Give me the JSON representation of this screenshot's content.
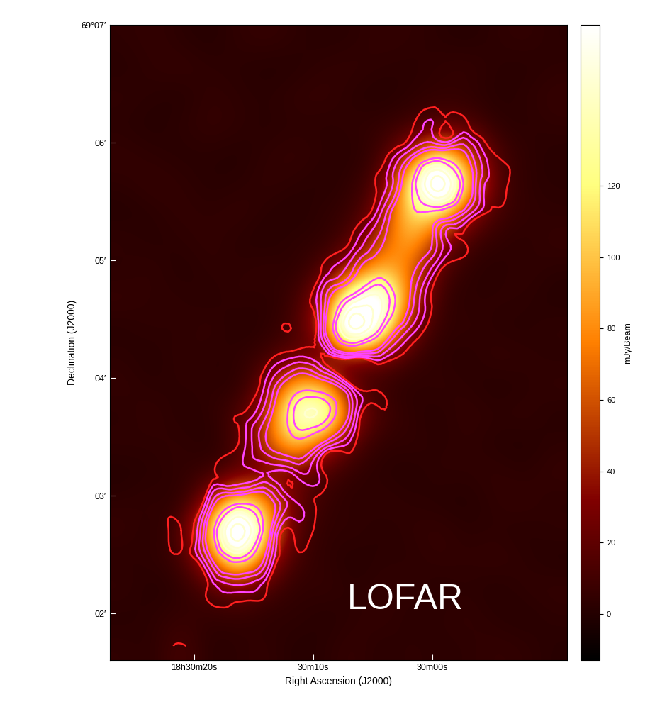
{
  "chart_data": {
    "type": "heatmap",
    "x_label": "Right Ascension (J2000)",
    "y_label": "Declination (J2000)",
    "colorbar_label": "mJy/Beam",
    "annotations": [
      "LOFAR"
    ],
    "xlim": [
      87.1,
      48.7
    ],
    "xticks": [
      {
        "value": 80,
        "label": "18h30m20s"
      },
      {
        "value": 70,
        "label": "30m10s"
      },
      {
        "value": 60,
        "label": "30m00s"
      }
    ],
    "ylim": [
      1.6,
      7.0
    ],
    "yticks": [
      {
        "value": 2,
        "label": "02′"
      },
      {
        "value": 3,
        "label": "03′"
      },
      {
        "value": 4,
        "label": "04′"
      },
      {
        "value": 5,
        "label": "05′"
      },
      {
        "value": 6,
        "label": "06′"
      },
      {
        "value": 7,
        "label": "69°07′"
      }
    ],
    "colorbar_range": [
      -13,
      165
    ],
    "colorbar_ticks": [
      0,
      20,
      40,
      60,
      80,
      100,
      120
    ],
    "contours": [
      {
        "color": "#ff2020",
        "levels": [
          12
        ]
      },
      {
        "color": "#ff44ff",
        "levels": [
          20,
          30,
          45,
          60,
          130,
          160
        ]
      },
      {
        "color": "#ffffd0",
        "levels": [
          200,
          240,
          280
        ]
      }
    ],
    "cells": [
      [
        3,
        5,
        2,
        0,
        4,
        6,
        3,
        1,
        2,
        5,
        4,
        2,
        0,
        3,
        5,
        2
      ],
      [
        1,
        4,
        6,
        3,
        2,
        0,
        1,
        4,
        5,
        3,
        2,
        4,
        6,
        2,
        1,
        3
      ],
      [
        4,
        2,
        0,
        5,
        3,
        2,
        5,
        6,
        2,
        0,
        3,
        5,
        4,
        1,
        3,
        6
      ],
      [
        2,
        0,
        3,
        6,
        4,
        1,
        3,
        2,
        4,
        5,
        8,
        15,
        14,
        3,
        2,
        4
      ],
      [
        5,
        3,
        1,
        2,
        0,
        4,
        6,
        3,
        1,
        8,
        40,
        100,
        60,
        12,
        4,
        1
      ],
      [
        3,
        6,
        4,
        1,
        2,
        5,
        3,
        1,
        4,
        15,
        110,
        300,
        100,
        15,
        3,
        2
      ],
      [
        0,
        2,
        5,
        3,
        6,
        2,
        0,
        4,
        6,
        30,
        120,
        110,
        40,
        10,
        5,
        3
      ],
      [
        4,
        1,
        3,
        5,
        2,
        0,
        4,
        3,
        15,
        55,
        100,
        40,
        10,
        4,
        2,
        6
      ],
      [
        2,
        5,
        0,
        4,
        3,
        6,
        2,
        15,
        45,
        100,
        70,
        15,
        3,
        1,
        5,
        2
      ],
      [
        6,
        3,
        4,
        1,
        5,
        2,
        8,
        40,
        170,
        200,
        60,
        6,
        2,
        4,
        3,
        0
      ],
      [
        1,
        4,
        2,
        6,
        0,
        3,
        10,
        50,
        280,
        150,
        30,
        4,
        5,
        2,
        1,
        4
      ],
      [
        3,
        0,
        5,
        2,
        4,
        8,
        20,
        10,
        22,
        25,
        8,
        3,
        1,
        6,
        4,
        2
      ],
      [
        5,
        2,
        3,
        4,
        1,
        25,
        100,
        90,
        15,
        6,
        2,
        5,
        3,
        0,
        2,
        5
      ],
      [
        2,
        6,
        1,
        3,
        12,
        45,
        170,
        180,
        40,
        10,
        4,
        1,
        6,
        3,
        5,
        1
      ],
      [
        4,
        3,
        5,
        0,
        12,
        60,
        110,
        50,
        15,
        3,
        5,
        2,
        4,
        1,
        0,
        3
      ],
      [
        0,
        2,
        4,
        6,
        15,
        20,
        25,
        12,
        4,
        2,
        0,
        4,
        3,
        5,
        2,
        6
      ],
      [
        3,
        5,
        1,
        35,
        110,
        80,
        20,
        6,
        2,
        5,
        3,
        1,
        0,
        4,
        6,
        2
      ],
      [
        6,
        1,
        12,
        90,
        300,
        90,
        15,
        3,
        5,
        1,
        4,
        6,
        2,
        3,
        1,
        4
      ],
      [
        2,
        4,
        8,
        50,
        150,
        45,
        8,
        4,
        0,
        3,
        2,
        5,
        4,
        6,
        3,
        0
      ],
      [
        5,
        0,
        3,
        14,
        25,
        12,
        3,
        6,
        2,
        4,
        5,
        1,
        3,
        0,
        4,
        5
      ],
      [
        1,
        3,
        6,
        4,
        5,
        2,
        4,
        0,
        3,
        6,
        1,
        3,
        5,
        2,
        0,
        3
      ],
      [
        4,
        2,
        13,
        1,
        3,
        5,
        0,
        2,
        6,
        1,
        4,
        2,
        3,
        5,
        4,
        1
      ]
    ]
  }
}
